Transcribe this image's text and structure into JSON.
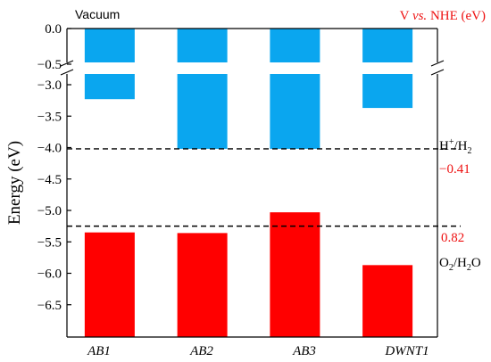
{
  "chart_data": {
    "type": "bar",
    "categories": [
      "AB1",
      "AB2",
      "AB3",
      "DWNT1"
    ],
    "ylabel": "Energy (eV)",
    "vacuum_label": "Vacuum",
    "right_axis_title_prefix": "V ",
    "right_axis_title_vs": "vs.",
    "right_axis_title_suffix": " NHE (eV)",
    "y_axis": {
      "break_between": [
        -0.5,
        -3.0
      ],
      "upper_segment": [
        0.0,
        -0.6
      ],
      "lower_segment": [
        -2.85,
        -6.5
      ],
      "tick_labels": [
        "0.0",
        "−0.5",
        "−3.0",
        "−3.5",
        "−4.0",
        "−4.5",
        "−5.0",
        "−5.5",
        "−6.0",
        "−6.5"
      ],
      "tick_values": [
        0.0,
        -0.5,
        -3.0,
        -3.5,
        -4.0,
        -4.5,
        -5.0,
        -5.5,
        -6.0,
        -6.5
      ]
    },
    "series": [
      {
        "values": [
          -3.23,
          -4.02,
          -4.02,
          -3.37
        ],
        "color": "#0aa6ef"
      },
      {
        "values": [
          -5.35,
          -5.36,
          -5.03,
          -5.87
        ],
        "color": "#ff0000"
      }
    ],
    "reference_lines": [
      {
        "value": -4.02,
        "label_H": "H",
        "label_sup": "+",
        "label_mid": "/H",
        "label_sub": "2",
        "nhe_label": "−0.41"
      },
      {
        "value": -5.25,
        "label_O": "O",
        "label_sub1": "2",
        "label_mid": "/H",
        "label_sub2": "2",
        "label_end": "O",
        "nhe_label": "0.82"
      }
    ],
    "grid": false
  }
}
